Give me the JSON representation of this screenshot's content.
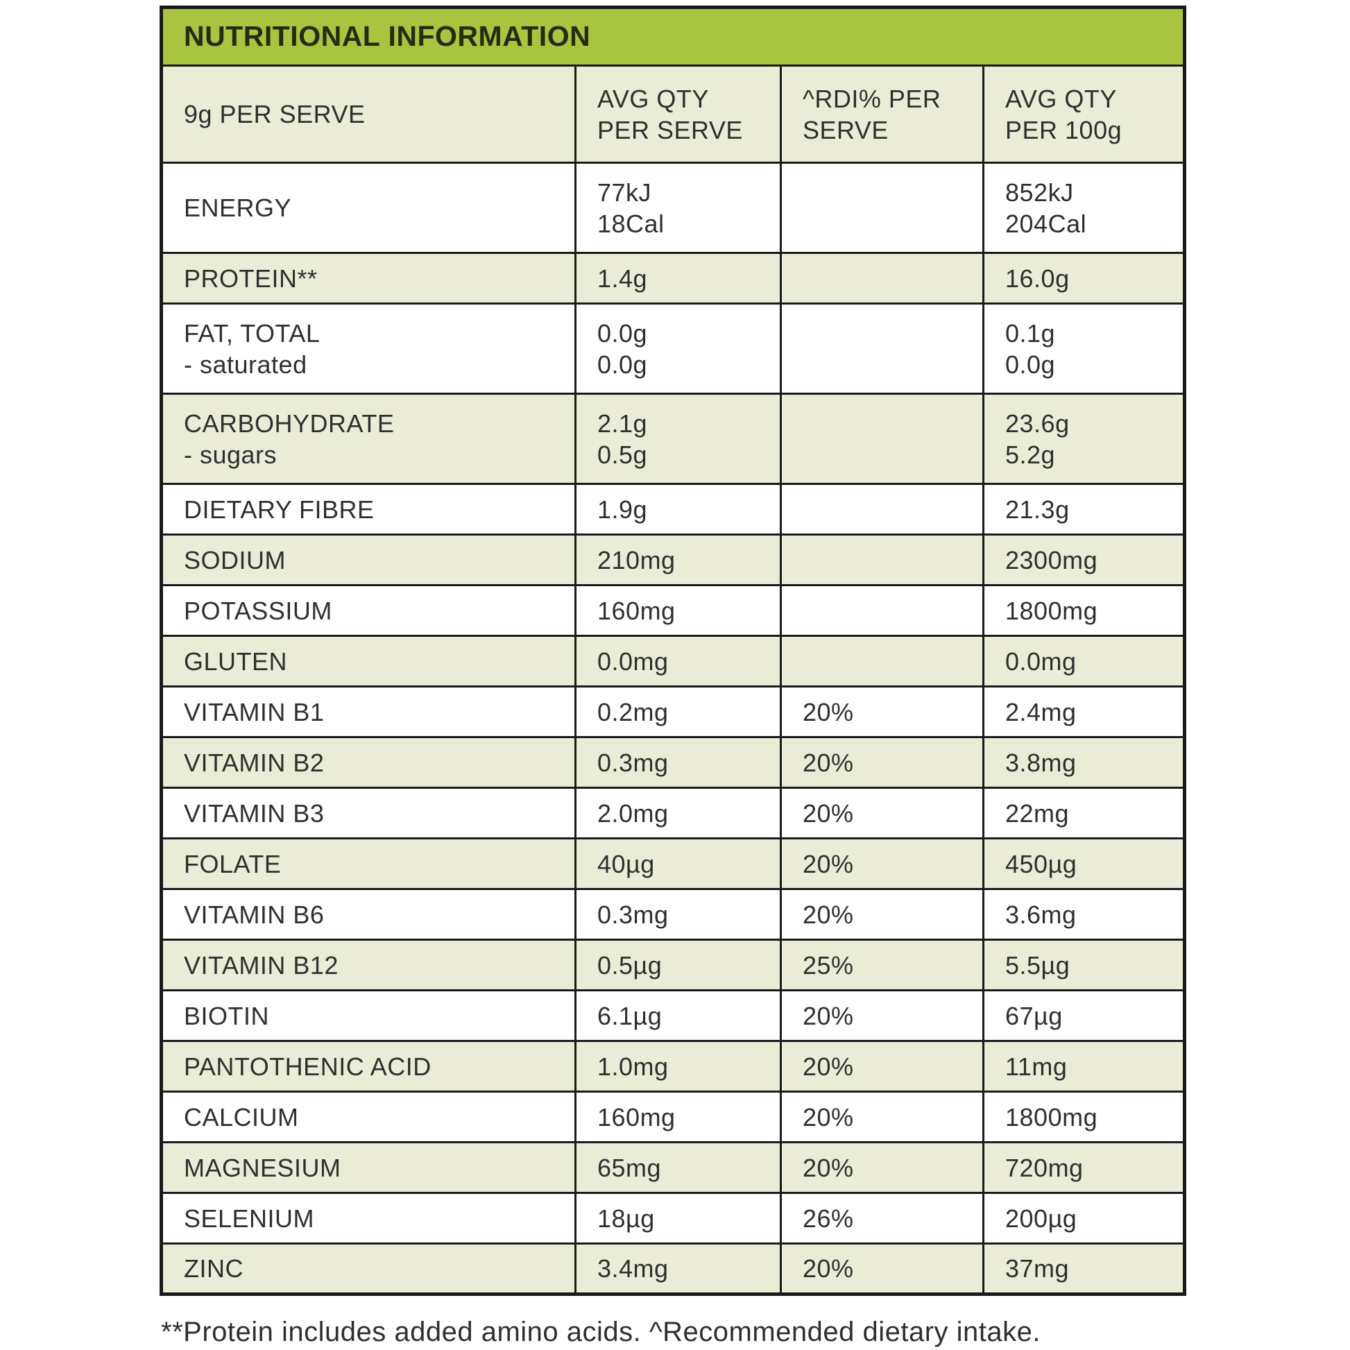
{
  "table": {
    "title": "NUTRITIONAL INFORMATION",
    "columns": [
      "9g PER SERVE",
      "AVG QTY\nPER SERVE",
      "^RDI% PER\nSERVE",
      "AVG QTY\nPER 100g"
    ],
    "rows": [
      {
        "label": "ENERGY",
        "per_serve": "77kJ\n18Cal",
        "rdi": "",
        "per_100g": "852kJ\n204Cal"
      },
      {
        "label": "PROTEIN**",
        "per_serve": "1.4g",
        "rdi": "",
        "per_100g": "16.0g"
      },
      {
        "label": "FAT, TOTAL\n- saturated",
        "per_serve": "0.0g\n0.0g",
        "rdi": "",
        "per_100g": "0.1g\n0.0g"
      },
      {
        "label": "CARBOHYDRATE\n- sugars",
        "per_serve": "2.1g\n0.5g",
        "rdi": "",
        "per_100g": "23.6g\n5.2g"
      },
      {
        "label": "DIETARY FIBRE",
        "per_serve": "1.9g",
        "rdi": "",
        "per_100g": "21.3g"
      },
      {
        "label": "SODIUM",
        "per_serve": "210mg",
        "rdi": "",
        "per_100g": "2300mg"
      },
      {
        "label": "POTASSIUM",
        "per_serve": "160mg",
        "rdi": "",
        "per_100g": "1800mg"
      },
      {
        "label": "GLUTEN",
        "per_serve": "0.0mg",
        "rdi": "",
        "per_100g": "0.0mg"
      },
      {
        "label": "VITAMIN B1",
        "per_serve": "0.2mg",
        "rdi": "20%",
        "per_100g": "2.4mg"
      },
      {
        "label": "VITAMIN B2",
        "per_serve": "0.3mg",
        "rdi": "20%",
        "per_100g": "3.8mg"
      },
      {
        "label": "VITAMIN B3",
        "per_serve": "2.0mg",
        "rdi": "20%",
        "per_100g": "22mg"
      },
      {
        "label": "FOLATE",
        "per_serve": "40µg",
        "rdi": "20%",
        "per_100g": "450µg"
      },
      {
        "label": "VITAMIN B6",
        "per_serve": "0.3mg",
        "rdi": "20%",
        "per_100g": "3.6mg"
      },
      {
        "label": "VITAMIN B12",
        "per_serve": "0.5µg",
        "rdi": "25%",
        "per_100g": "5.5µg"
      },
      {
        "label": "BIOTIN",
        "per_serve": "6.1µg",
        "rdi": "20%",
        "per_100g": "67µg"
      },
      {
        "label": "PANTOTHENIC ACID",
        "per_serve": "1.0mg",
        "rdi": "20%",
        "per_100g": "11mg"
      },
      {
        "label": "CALCIUM",
        "per_serve": "160mg",
        "rdi": "20%",
        "per_100g": "1800mg"
      },
      {
        "label": "MAGNESIUM",
        "per_serve": "65mg",
        "rdi": "20%",
        "per_100g": "720mg"
      },
      {
        "label": "SELENIUM",
        "per_serve": "18µg",
        "rdi": "26%",
        "per_100g": "200µg"
      },
      {
        "label": "ZINC",
        "per_serve": "3.4mg",
        "rdi": "20%",
        "per_100g": "37mg"
      }
    ],
    "footnote": "**Protein includes added amino acids. ^Recommended dietary intake."
  },
  "colors": {
    "header_bg": "#a9c43e",
    "row_shade_bg": "#eaecd8",
    "border": "#1a1a1a",
    "text": "#2f2f2f"
  }
}
